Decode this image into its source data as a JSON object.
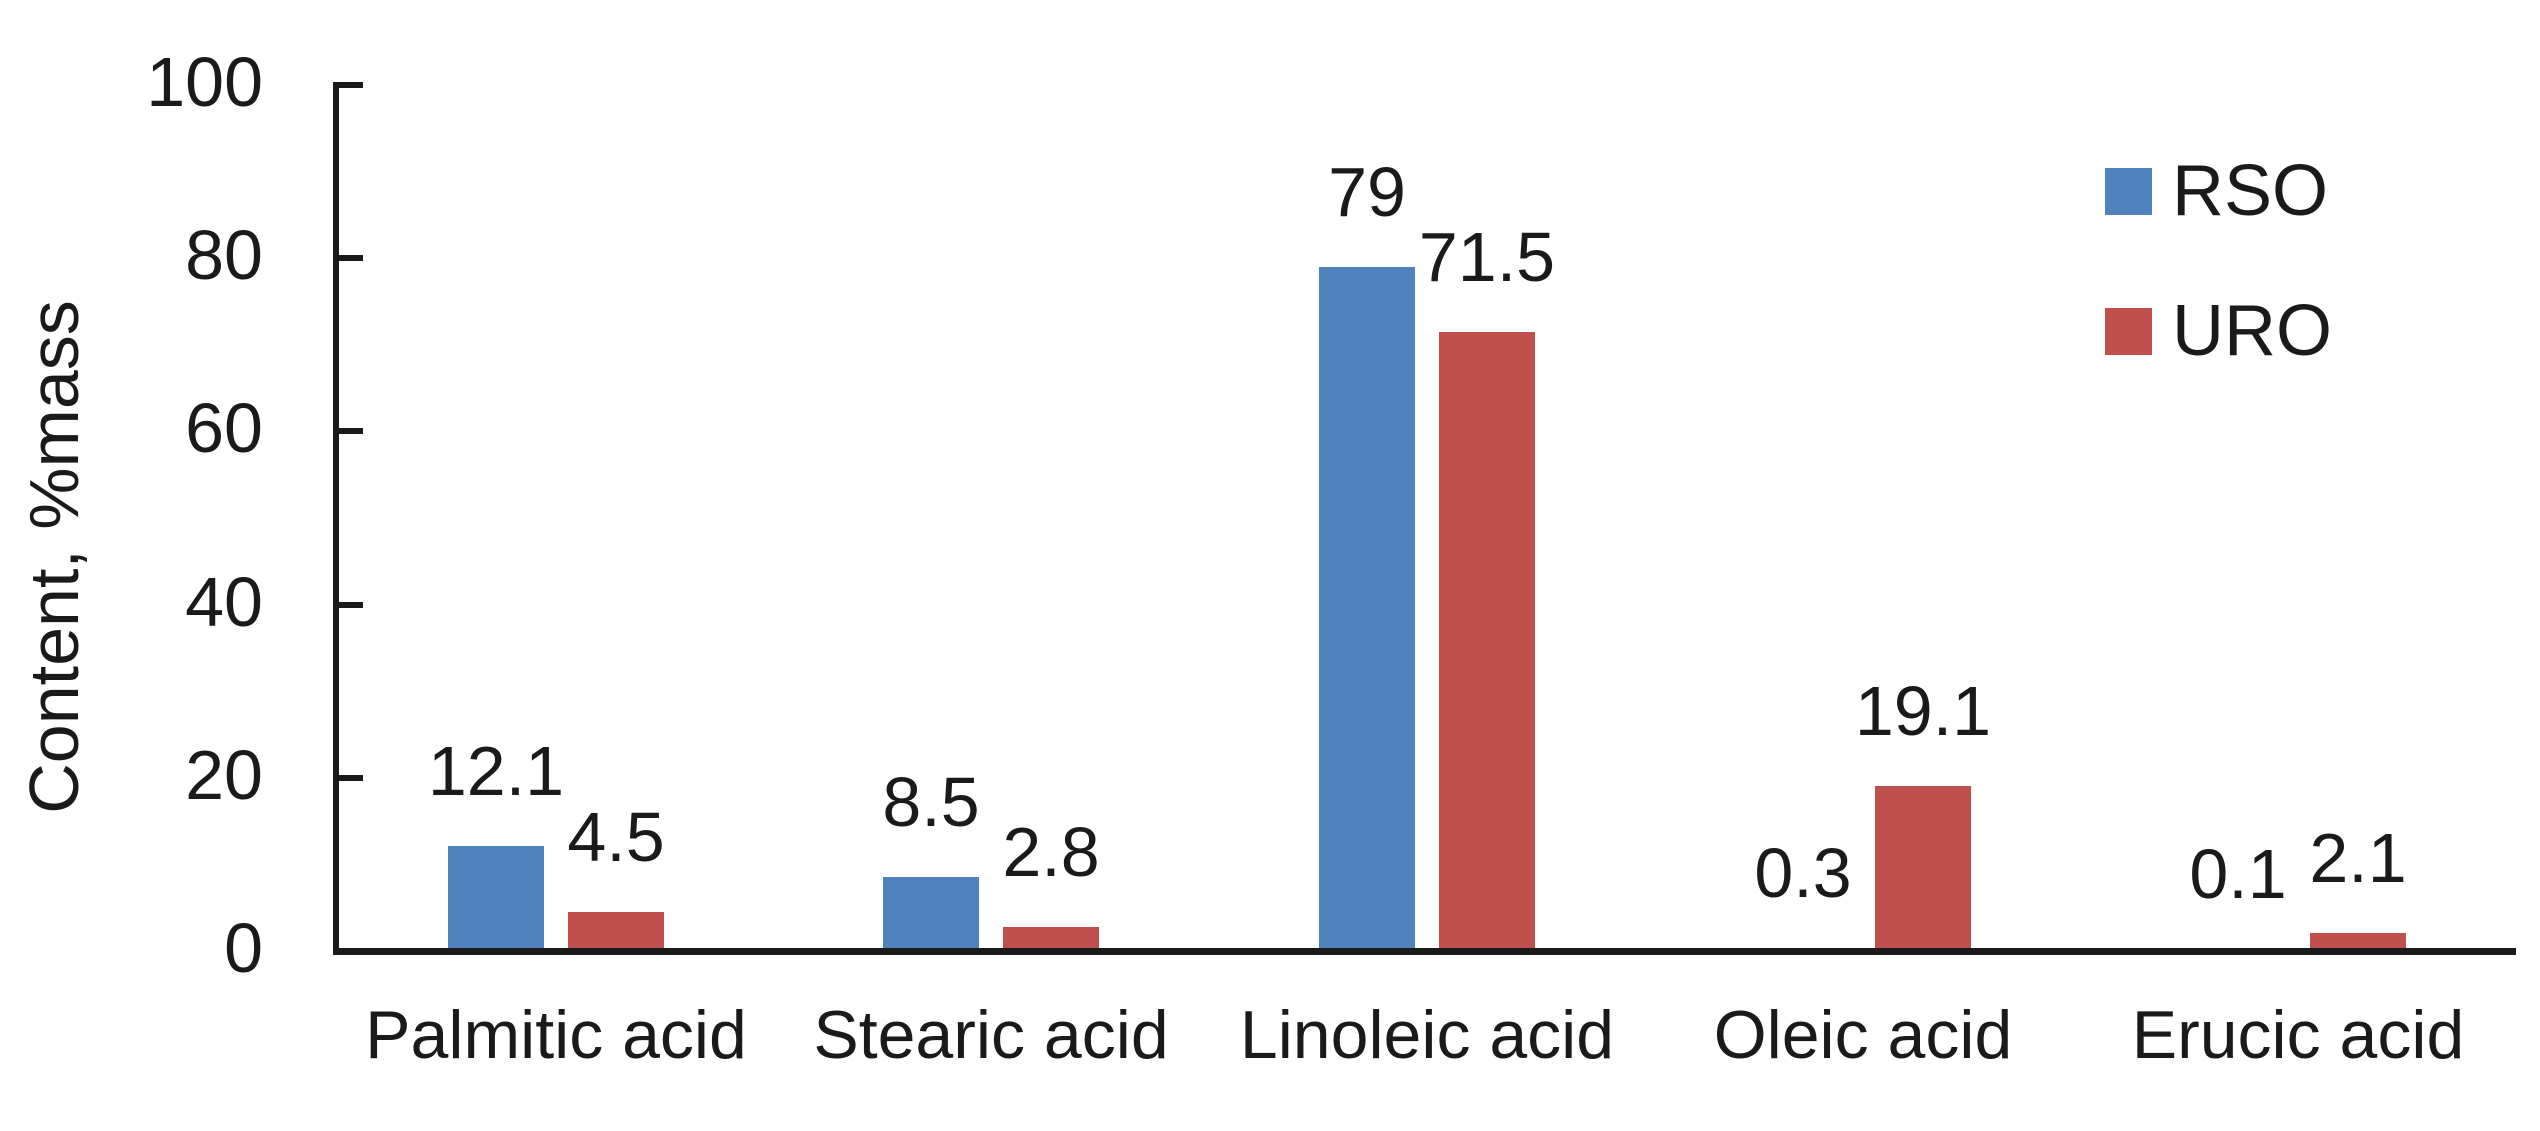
{
  "chart_data": {
    "type": "bar",
    "title": "",
    "ylabel": "Content, %mass",
    "xlabel": "",
    "categories": [
      "Palmitic acid",
      "Stearic acid",
      "Linoleic acid",
      "Oleic acid",
      "Erucic acid"
    ],
    "series": [
      {
        "name": "RSO",
        "color": "#4F81BD",
        "values": [
          12.1,
          8.5,
          79,
          0.3,
          0.1
        ],
        "labels": [
          "12.1",
          "8.5",
          "79",
          "0.3",
          "0.1"
        ]
      },
      {
        "name": "URO",
        "color": "#C0504D",
        "values": [
          4.5,
          2.8,
          71.5,
          19.1,
          2.1
        ],
        "labels": [
          "4.5",
          "2.8",
          "71.5",
          "19.1",
          "2.1"
        ]
      }
    ],
    "ylim": [
      0,
      100
    ],
    "yticks": [
      0,
      20,
      40,
      60,
      80,
      100
    ],
    "grid": false,
    "data_labels": true,
    "legend_position": "top-right",
    "legend_entries": [
      "RSO",
      "URO"
    ],
    "background_color": "#ffffff",
    "axis_color": "#1a1a1a",
    "text_color": "#1a1a1a"
  }
}
